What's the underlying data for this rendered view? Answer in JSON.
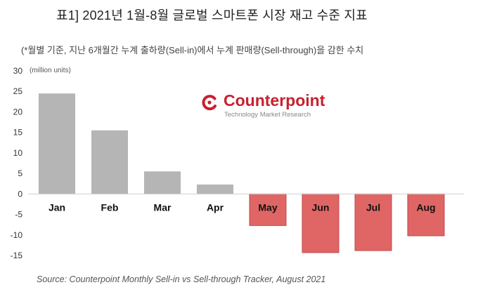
{
  "header": {
    "title": "표1] 2021년 1월-8월 글로벌 스마트폰 시장 재고 수준 지표",
    "subtitle": "(*월별 기준, 지난 6개월간 누계 출하량(Sell-in)에서 누계 판매량(Sell-through)을 감한 수치"
  },
  "logo": {
    "name": "Counterpoint",
    "tagline": "Technology Market Research",
    "icon": "counterpoint-logo-icon",
    "color": "#c8202f"
  },
  "source": "Source: Counterpoint Monthly Sell-in vs Sell-through Tracker, August 2021",
  "chart_data": {
    "type": "bar",
    "title": "",
    "xlabel": "",
    "ylabel": "(million units)",
    "categories": [
      "Jan",
      "Feb",
      "Mar",
      "Apr",
      "May",
      "Jun",
      "Jul",
      "Aug"
    ],
    "values": [
      24.5,
      15.5,
      5.5,
      2.3,
      -7.7,
      -14.3,
      -13.8,
      -10.2
    ],
    "ylim": [
      -15,
      30
    ],
    "yticks": [
      30,
      25,
      20,
      15,
      10,
      5,
      0,
      -5,
      -10,
      -15
    ],
    "grid": false,
    "legend": "none",
    "colors": {
      "positive": "#b5b5b5",
      "negative": "#e06666",
      "negative_stroke": "#c04848"
    }
  }
}
